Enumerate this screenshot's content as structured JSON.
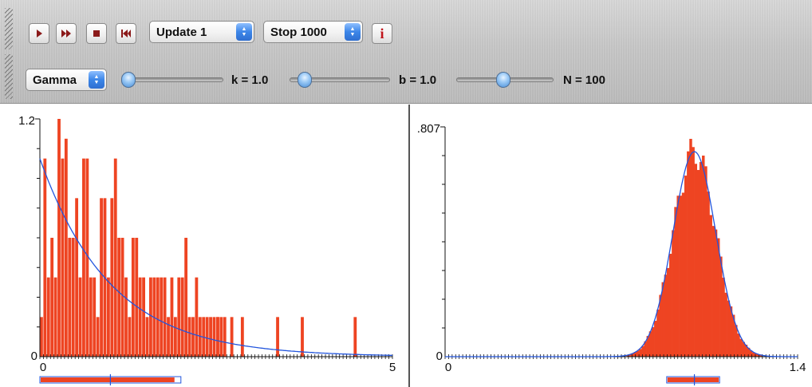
{
  "toolbar": {
    "buttons": [
      {
        "name": "play-button",
        "icon": "play-icon"
      },
      {
        "name": "fast-forward-button",
        "icon": "fast-forward-icon"
      },
      {
        "name": "stop-button",
        "icon": "stop-icon"
      },
      {
        "name": "reset-button",
        "icon": "rewind-to-start-icon"
      }
    ],
    "update_select": {
      "value": "Update 1"
    },
    "stop_select": {
      "value": "Stop 1000"
    },
    "info_button": {
      "label": "i",
      "icon": "info-icon"
    },
    "distribution_select": {
      "value": "Gamma"
    },
    "sliders": [
      {
        "name": "k",
        "label": "k = 1.0",
        "value": 1.0
      },
      {
        "name": "b",
        "label": "b = 1.0",
        "value": 1.0
      },
      {
        "name": "N",
        "label": "N = 100",
        "value": 100
      }
    ],
    "colors": {
      "button_glyph": "#8b1a1a",
      "info": "#c0141b",
      "accent": "#3c86e8"
    }
  },
  "chart_data": [
    {
      "type": "bar",
      "description_hidden": false,
      "y_top_label": "1.2",
      "y_zero_label": "0",
      "x_left_label": "0",
      "x_right_label": "5",
      "xlim": [
        0,
        5
      ],
      "ylim": [
        0,
        1.2
      ],
      "bar_color": "#ee4422",
      "curve_color": "#2255dd",
      "bin_width": 0.05,
      "values": [
        0.2,
        1.0,
        0.4,
        0.6,
        0.4,
        1.2,
        1.0,
        1.1,
        0.6,
        0.6,
        0.8,
        0.4,
        1.0,
        1.0,
        0.4,
        0.4,
        0.2,
        0.8,
        0.8,
        0.4,
        0.8,
        1.0,
        0.6,
        0.6,
        0.4,
        0.2,
        0.6,
        0.6,
        0.4,
        0.4,
        0.2,
        0.4,
        0.4,
        0.4,
        0.4,
        0.4,
        0.2,
        0.4,
        0.2,
        0.4,
        0.4,
        0.6,
        0.2,
        0.2,
        0.4,
        0.2,
        0.2,
        0.2,
        0.2,
        0.2,
        0.2,
        0.2,
        0.2,
        0.0,
        0.0,
        0.0,
        0.0,
        0.0,
        0.0,
        0.0,
        0.0,
        0.0,
        0.0,
        0.0,
        0.0,
        0.0,
        0.0,
        0.0,
        0.0,
        0.0,
        0.0,
        0.0,
        0.0,
        0.0,
        0.0,
        0.0,
        0.0,
        0.0,
        0.0,
        0.0,
        0.0,
        0.0,
        0.0,
        0.0,
        0.0,
        0.0,
        0.0,
        0.0,
        0.0,
        0.0,
        0.0,
        0.0,
        0.0,
        0.0,
        0.0,
        0.0,
        0.0,
        0.0,
        0.0,
        0.0
      ],
      "extra_bars": [
        {
          "x": 2.5,
          "y": 0.2
        },
        {
          "x": 2.7,
          "y": 0.2
        },
        {
          "x": 2.85,
          "y": 0.2
        },
        {
          "x": 3.35,
          "y": 0.2
        },
        {
          "x": 3.7,
          "y": 0.2
        },
        {
          "x": 4.45,
          "y": 0.2
        }
      ],
      "curve": {
        "type": "exponential",
        "amplitude": 1.0,
        "rate": 1.0
      },
      "range_indicator": {
        "from": 0.0,
        "to": 2.0,
        "marker": 1.0
      }
    },
    {
      "type": "bar",
      "y_top_label": ".807",
      "y_zero_label": "0",
      "x_left_label": "0",
      "x_right_label": "1.4",
      "xlim": [
        0,
        1.4
      ],
      "ylim": [
        0,
        0.807
      ],
      "bar_color": "#ee4422",
      "curve_color": "#2255dd",
      "curve": {
        "type": "gaussian",
        "mean": 0.99,
        "sd": 0.085,
        "peak": 0.72
      },
      "range_indicator": {
        "from": 0.88,
        "to": 1.09,
        "marker": 0.99
      }
    }
  ]
}
